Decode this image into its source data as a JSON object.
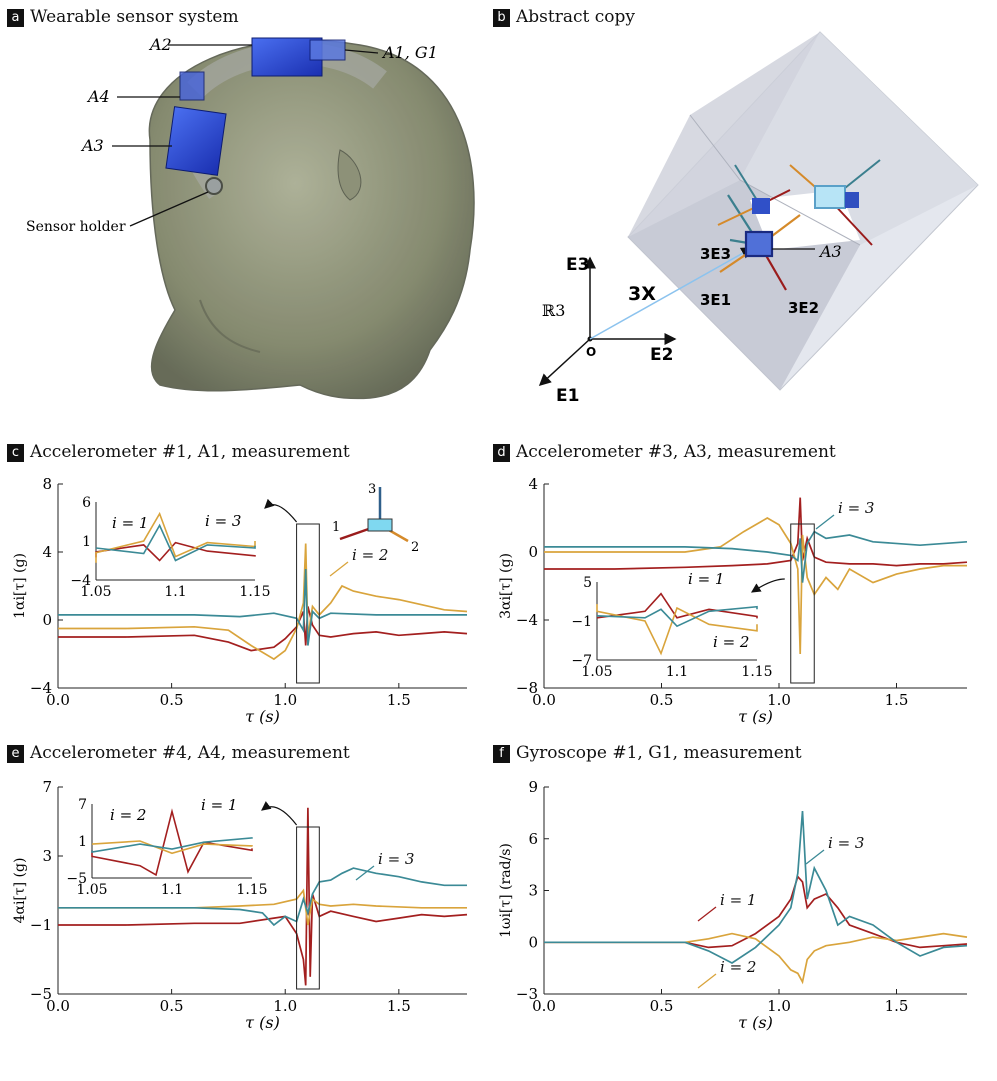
{
  "panels": {
    "a": {
      "badge": "a",
      "title": "Wearable sensor system",
      "labels": {
        "a2": "A2",
        "a1g1": "A1, G1",
        "a4": "A4",
        "a3": "A3",
        "holder": "Sensor holder"
      }
    },
    "b": {
      "badge": "b",
      "title": "Abstract copy",
      "labels": {
        "e3": "E3",
        "e2": "E2",
        "e1": "E1",
        "origin": "O",
        "r3": "ℝ3",
        "x": "3X",
        "le3": "3E3",
        "le1": "3E1",
        "le2": "3E2",
        "a3": "A3"
      }
    },
    "c": {
      "badge": "c",
      "title": "Accelerometer #1, A1, measurement"
    },
    "d": {
      "badge": "d",
      "title": "Accelerometer #3, A3, measurement"
    },
    "e": {
      "badge": "e",
      "title": "Accelerometer #4, A4, measurement"
    },
    "f": {
      "badge": "f",
      "title": "Gyroscope #1, G1, measurement"
    }
  },
  "colors": {
    "i1": "#a31f1f",
    "i2": "#d9a43c",
    "i3": "#3b8a96",
    "frame": "#222222"
  },
  "chart_data": [
    {
      "id": "c",
      "type": "line",
      "title": "Accelerometer #1, A1, measurement",
      "xlabel": "τ (s)",
      "ylabel": "1αi[τ] (g)",
      "xlim": [
        0,
        1.8
      ],
      "ylim": [
        -4,
        8
      ],
      "xticks": [
        0.0,
        0.5,
        1.0,
        1.5
      ],
      "yticks": [
        -4,
        0,
        4,
        8
      ],
      "series": [
        {
          "name": "i = 1",
          "color": "#a31f1f",
          "x": [
            0,
            0.3,
            0.6,
            0.75,
            0.85,
            0.95,
            1.0,
            1.05,
            1.08,
            1.09,
            1.1,
            1.12,
            1.15,
            1.2,
            1.3,
            1.4,
            1.5,
            1.6,
            1.7,
            1.8
          ],
          "y": [
            -1,
            -1,
            -0.9,
            -1.3,
            -1.8,
            -1.6,
            -1.1,
            -0.4,
            0.5,
            -1.5,
            0.8,
            -0.3,
            -0.9,
            -1.0,
            -0.8,
            -0.7,
            -0.9,
            -0.8,
            -0.7,
            -0.8
          ]
        },
        {
          "name": "i = 2",
          "color": "#d9a43c",
          "x": [
            0,
            0.3,
            0.6,
            0.75,
            0.85,
            0.95,
            1.0,
            1.05,
            1.08,
            1.09,
            1.1,
            1.12,
            1.15,
            1.2,
            1.25,
            1.3,
            1.4,
            1.5,
            1.6,
            1.7,
            1.8
          ],
          "y": [
            -0.5,
            -0.5,
            -0.4,
            -0.6,
            -1.5,
            -2.3,
            -1.8,
            -0.5,
            1.0,
            4.5,
            -1.0,
            0.8,
            0.3,
            1.0,
            2.0,
            1.7,
            1.4,
            1.2,
            0.9,
            0.6,
            0.5
          ]
        },
        {
          "name": "i = 3",
          "color": "#3b8a96",
          "x": [
            0,
            0.3,
            0.6,
            0.8,
            0.95,
            1.05,
            1.08,
            1.09,
            1.1,
            1.12,
            1.15,
            1.2,
            1.4,
            1.6,
            1.8
          ],
          "y": [
            0.3,
            0.3,
            0.3,
            0.2,
            0.4,
            0.1,
            -0.6,
            3.0,
            -1.5,
            0.5,
            0.1,
            0.4,
            0.3,
            0.3,
            0.3
          ]
        }
      ],
      "annotations": [
        "i = 2"
      ],
      "inset": {
        "xlim": [
          1.05,
          1.15
        ],
        "ylim": [
          -4,
          6
        ],
        "xticks": [
          "1.05",
          "1.1",
          "1.15"
        ],
        "yticks": [
          "6",
          "1",
          "−4"
        ],
        "labels": [
          "i = 1",
          "i = 3"
        ]
      },
      "axes_glyph": {
        "labels": [
          "1",
          "2",
          "3"
        ]
      }
    },
    {
      "id": "d",
      "type": "line",
      "title": "Accelerometer #3, A3, measurement",
      "xlabel": "τ (s)",
      "ylabel": "3αi[τ] (g)",
      "xlim": [
        0,
        1.8
      ],
      "ylim": [
        -8,
        4
      ],
      "xticks": [
        0.0,
        0.5,
        1.0,
        1.5
      ],
      "yticks": [
        -8,
        -4,
        0,
        4
      ],
      "series": [
        {
          "name": "i = 1",
          "color": "#a31f1f",
          "x": [
            0,
            0.3,
            0.6,
            0.8,
            0.95,
            1.05,
            1.08,
            1.09,
            1.1,
            1.12,
            1.15,
            1.2,
            1.3,
            1.4,
            1.5,
            1.6,
            1.7,
            1.8
          ],
          "y": [
            -1,
            -1,
            -0.9,
            -0.8,
            -0.7,
            -0.5,
            0.5,
            3.2,
            -0.5,
            0.8,
            -0.3,
            -0.6,
            -0.7,
            -0.7,
            -0.8,
            -0.7,
            -0.7,
            -0.6
          ]
        },
        {
          "name": "i = 2",
          "color": "#d9a43c",
          "x": [
            0,
            0.3,
            0.6,
            0.75,
            0.85,
            0.95,
            1.0,
            1.05,
            1.08,
            1.09,
            1.1,
            1.12,
            1.15,
            1.2,
            1.25,
            1.3,
            1.4,
            1.5,
            1.6,
            1.7,
            1.8
          ],
          "y": [
            0,
            0,
            0,
            0.3,
            1.2,
            2.0,
            1.6,
            0.5,
            -1.0,
            -6.0,
            1.0,
            -1.5,
            -2.5,
            -1.5,
            -2.2,
            -1.0,
            -1.8,
            -1.3,
            -1.0,
            -0.8,
            -0.8
          ]
        },
        {
          "name": "i = 3",
          "color": "#3b8a96",
          "x": [
            0,
            0.3,
            0.6,
            0.8,
            0.95,
            1.05,
            1.08,
            1.09,
            1.1,
            1.12,
            1.15,
            1.2,
            1.3,
            1.4,
            1.6,
            1.8
          ],
          "y": [
            0.3,
            0.3,
            0.3,
            0.2,
            0.0,
            -0.2,
            -0.5,
            0.8,
            -1.8,
            0.5,
            1.2,
            0.8,
            1.0,
            0.6,
            0.4,
            0.6
          ]
        }
      ],
      "annotations": [
        "i = 3"
      ],
      "inset": {
        "xlim": [
          1.05,
          1.15
        ],
        "ylim": [
          -7,
          5
        ],
        "xticks": [
          "1.05",
          "1.1",
          "1.15"
        ],
        "yticks": [
          "5",
          "−1",
          "−7"
        ],
        "labels": [
          "i = 1",
          "i = 2"
        ]
      }
    },
    {
      "id": "e",
      "type": "line",
      "title": "Accelerometer #4, A4, measurement",
      "xlabel": "τ (s)",
      "ylabel": "4αi[τ] (g)",
      "xlim": [
        0,
        1.8
      ],
      "ylim": [
        -5,
        7
      ],
      "xticks": [
        0.0,
        0.5,
        1.0,
        1.5
      ],
      "yticks": [
        -5,
        -1,
        3,
        7
      ],
      "series": [
        {
          "name": "i = 1",
          "color": "#a31f1f",
          "x": [
            0,
            0.3,
            0.6,
            0.8,
            0.95,
            1.0,
            1.05,
            1.08,
            1.09,
            1.1,
            1.11,
            1.12,
            1.15,
            1.2,
            1.3,
            1.4,
            1.5,
            1.6,
            1.7,
            1.8
          ],
          "y": [
            -1,
            -1,
            -0.9,
            -0.9,
            -0.6,
            -0.5,
            -1.5,
            -3.0,
            -4.5,
            5.8,
            -4.0,
            0.8,
            -0.5,
            -0.2,
            -0.5,
            -0.8,
            -0.6,
            -0.4,
            -0.5,
            -0.4
          ]
        },
        {
          "name": "i = 2",
          "color": "#d9a43c",
          "x": [
            0,
            0.3,
            0.6,
            0.8,
            0.95,
            1.05,
            1.08,
            1.1,
            1.12,
            1.15,
            1.2,
            1.3,
            1.4,
            1.6,
            1.8
          ],
          "y": [
            0,
            0,
            0,
            0.1,
            0.2,
            0.5,
            1.0,
            -1.0,
            0.5,
            0.2,
            0.1,
            0.2,
            0.1,
            0,
            0
          ]
        },
        {
          "name": "i = 3",
          "color": "#3b8a96",
          "x": [
            0,
            0.3,
            0.6,
            0.8,
            0.9,
            0.95,
            1.0,
            1.05,
            1.08,
            1.1,
            1.12,
            1.15,
            1.2,
            1.25,
            1.3,
            1.4,
            1.5,
            1.6,
            1.7,
            1.8
          ],
          "y": [
            0,
            0,
            0,
            -0.1,
            -0.3,
            -1.0,
            -0.5,
            -0.8,
            0.5,
            -0.3,
            0.8,
            1.5,
            1.6,
            2.0,
            2.3,
            2.0,
            1.8,
            1.5,
            1.3,
            1.3
          ]
        }
      ],
      "annotations": [
        "i = 3"
      ],
      "inset": {
        "xlim": [
          1.05,
          1.15
        ],
        "ylim": [
          -5,
          7
        ],
        "xticks": [
          "1.05",
          "1.1",
          "1.15"
        ],
        "yticks": [
          "7",
          "1",
          "−5"
        ],
        "labels": [
          "i = 2",
          "i = 1"
        ]
      }
    },
    {
      "id": "f",
      "type": "line",
      "title": "Gyroscope #1, G1, measurement",
      "xlabel": "τ (s)",
      "ylabel": "1ωi[τ] (rad/s)",
      "xlim": [
        0,
        1.8
      ],
      "ylim": [
        -3,
        9
      ],
      "xticks": [
        0.0,
        0.5,
        1.0,
        1.5
      ],
      "yticks": [
        -3,
        0,
        3,
        6,
        9
      ],
      "series": [
        {
          "name": "i = 1",
          "color": "#a31f1f",
          "x": [
            0,
            0.3,
            0.6,
            0.7,
            0.8,
            0.9,
            1.0,
            1.05,
            1.08,
            1.1,
            1.12,
            1.15,
            1.2,
            1.25,
            1.3,
            1.4,
            1.5,
            1.6,
            1.7,
            1.8
          ],
          "y": [
            0,
            0,
            0,
            -0.3,
            -0.2,
            0.5,
            1.5,
            2.5,
            3.8,
            3.5,
            2.0,
            2.5,
            2.8,
            2.0,
            1.0,
            0.5,
            0,
            -0.3,
            -0.2,
            -0.1
          ]
        },
        {
          "name": "i = 2",
          "color": "#d9a43c",
          "x": [
            0,
            0.3,
            0.6,
            0.7,
            0.8,
            0.9,
            1.0,
            1.05,
            1.08,
            1.1,
            1.12,
            1.15,
            1.2,
            1.3,
            1.4,
            1.5,
            1.6,
            1.7,
            1.8
          ],
          "y": [
            0,
            0,
            0,
            0.2,
            0.5,
            0.2,
            -0.8,
            -1.6,
            -1.8,
            -2.3,
            -1.0,
            -0.5,
            -0.2,
            0,
            0.3,
            0.1,
            0.3,
            0.5,
            0.3
          ]
        },
        {
          "name": "i = 3",
          "color": "#3b8a96",
          "x": [
            0,
            0.3,
            0.6,
            0.7,
            0.8,
            0.9,
            1.0,
            1.05,
            1.08,
            1.1,
            1.12,
            1.15,
            1.2,
            1.25,
            1.3,
            1.4,
            1.5,
            1.6,
            1.7,
            1.8
          ],
          "y": [
            0,
            0,
            0,
            -0.5,
            -1.2,
            -0.3,
            1.0,
            2.0,
            4.0,
            7.6,
            2.5,
            4.3,
            3.0,
            1.0,
            1.5,
            1.0,
            0,
            -0.8,
            -0.3,
            -0.2
          ]
        }
      ],
      "annotations": [
        "i = 3",
        "i = 1",
        "i = 2"
      ]
    }
  ]
}
